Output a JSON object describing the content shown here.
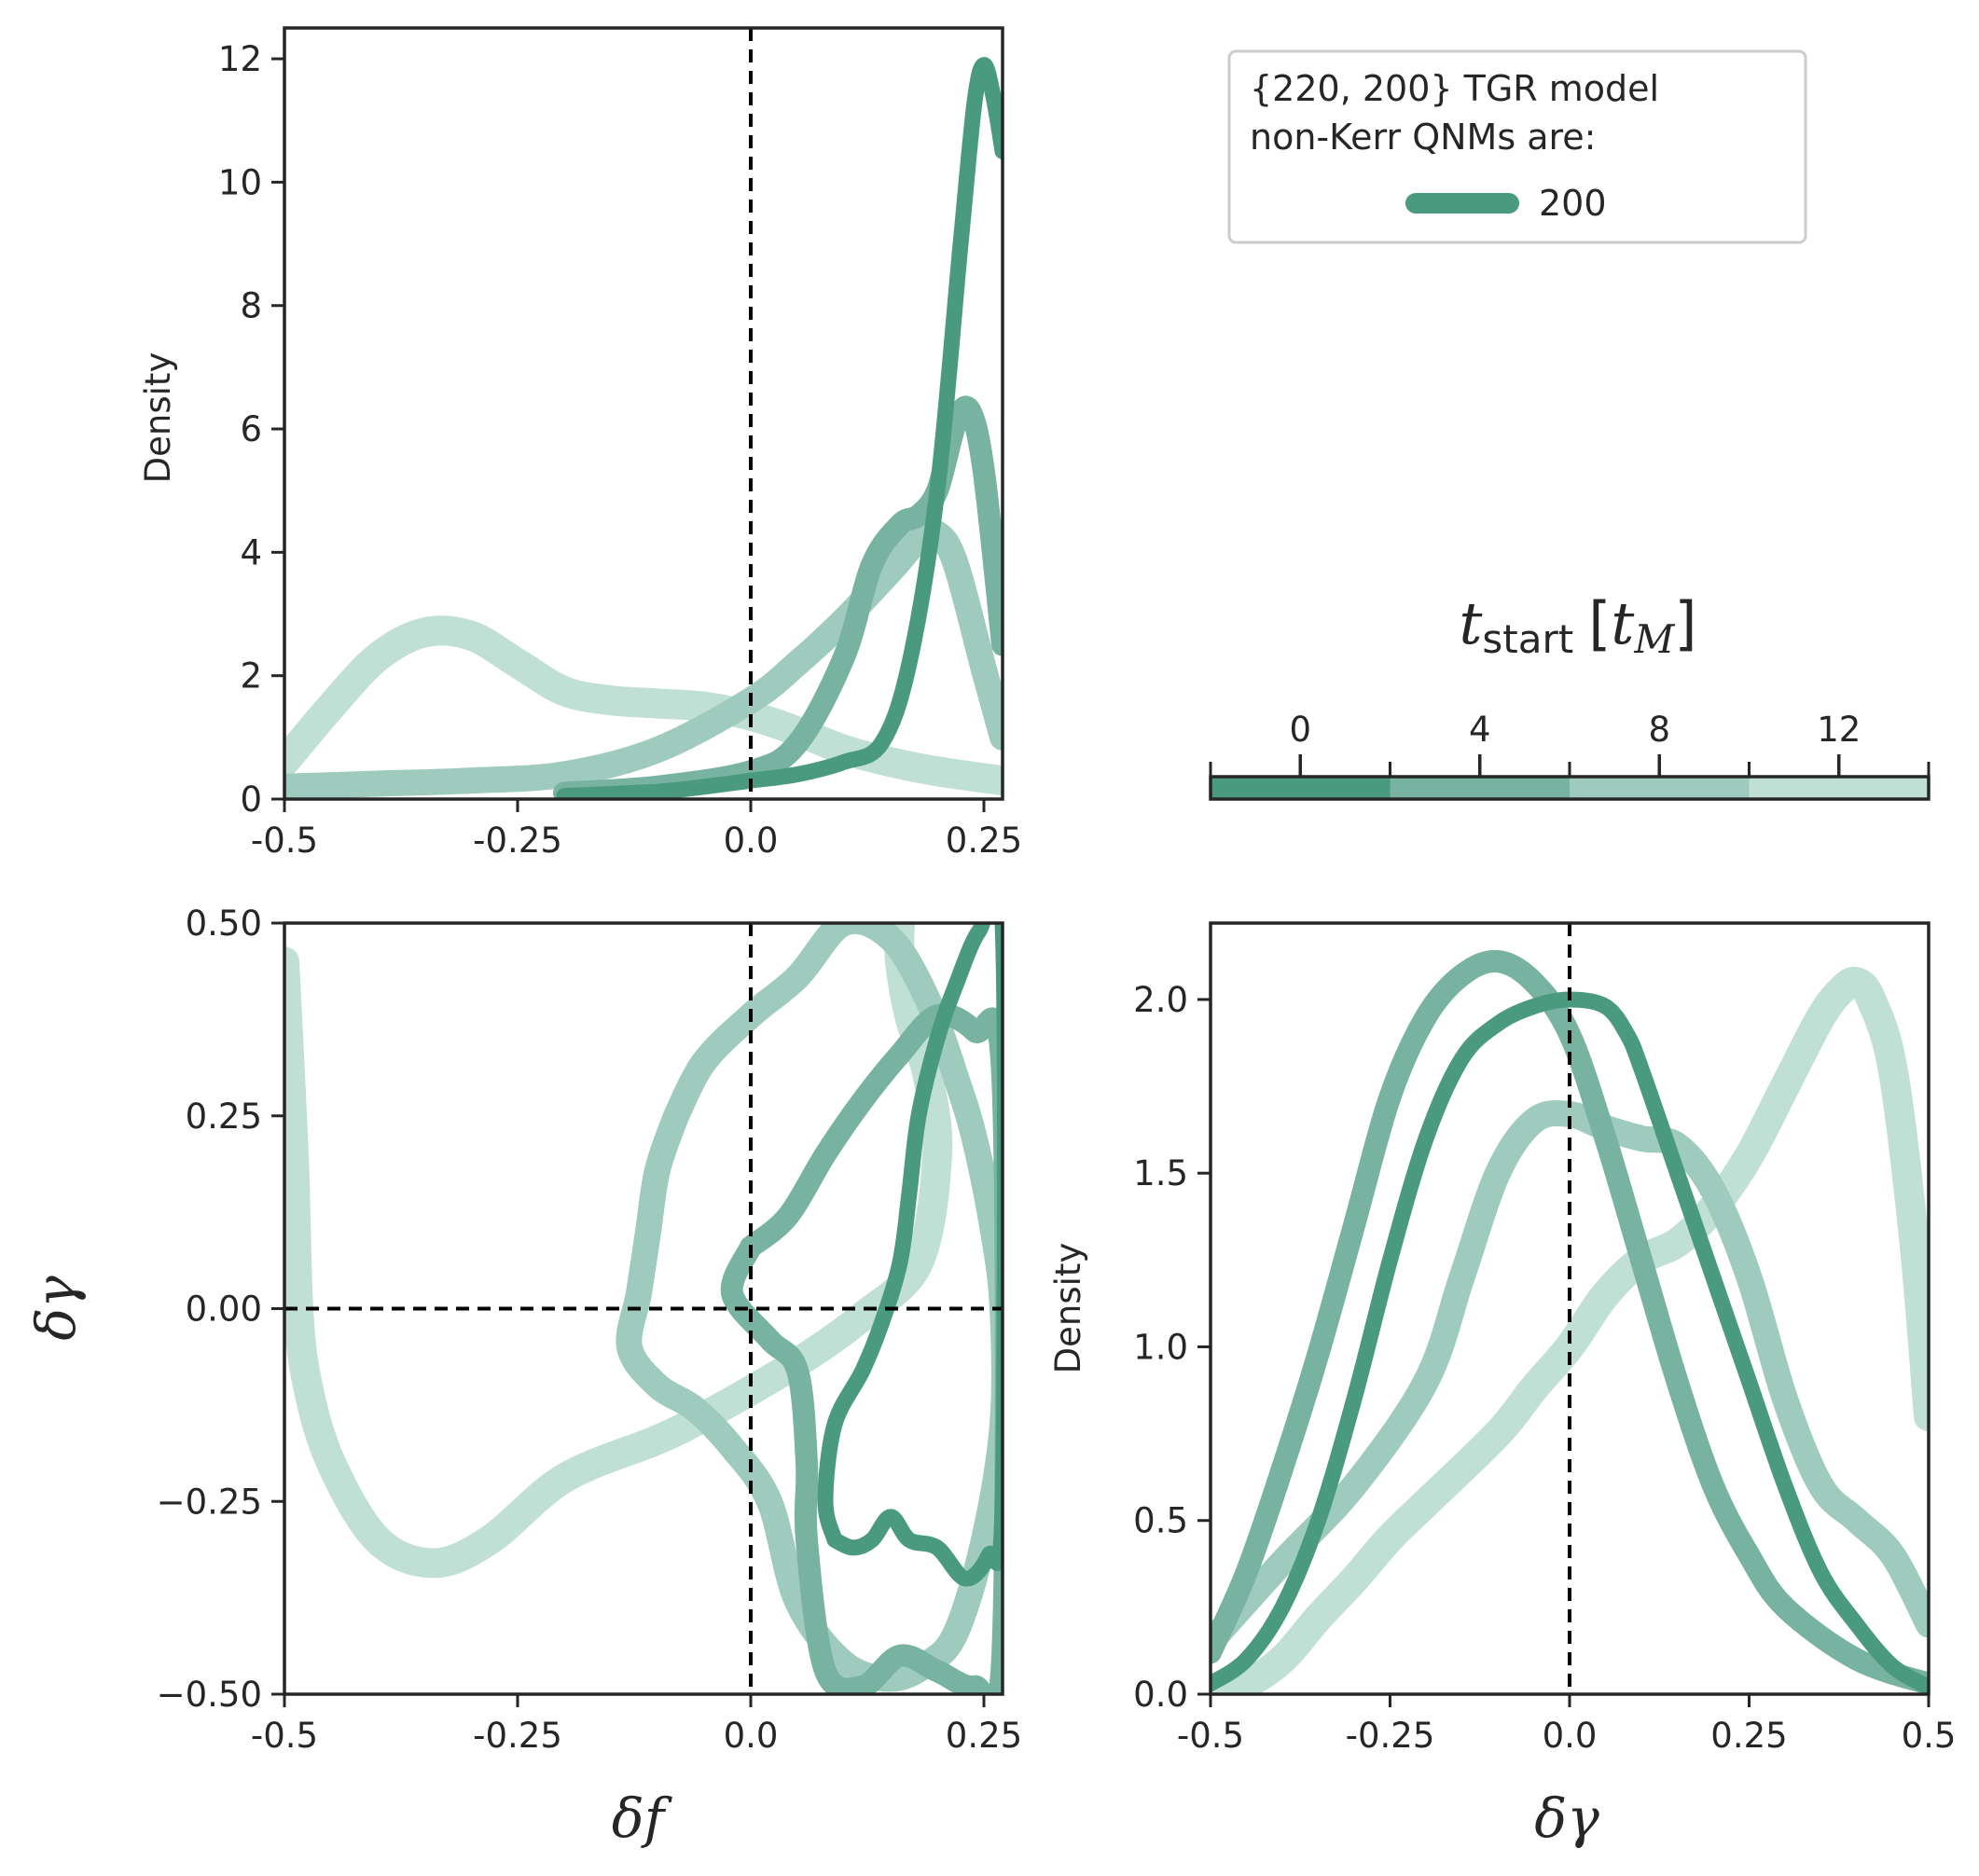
{
  "colors": {
    "dark": "#4a9a80",
    "mid": "#78b3a1",
    "light": "#9ecbbd",
    "lightest": "#c0dfd5",
    "axis": "#262626"
  },
  "legend": {
    "title_line1": "{220, 200} TGR model",
    "title_line2": "non-Kerr QNMs are:",
    "entry": "200"
  },
  "colorbar": {
    "title_main": "t",
    "title_sub": "start",
    "title_unit_open": "[",
    "title_unit": "t",
    "title_unit_sub": "M",
    "title_unit_close": "]",
    "range": [
      -2,
      14
    ],
    "ticks": [
      "0",
      "4",
      "8",
      "12"
    ],
    "bins": [
      [
        -2,
        2
      ],
      [
        2,
        6
      ],
      [
        6,
        10
      ],
      [
        10,
        14
      ]
    ]
  },
  "chart_data": [
    {
      "id": "top-left",
      "type": "line",
      "ylabel": "Density",
      "xlabel": "",
      "xlim": [
        -0.5,
        0.27
      ],
      "ylim": [
        0,
        12.5
      ],
      "xticks": [
        "-0.5",
        "-0.25",
        "0.0",
        "0.25"
      ],
      "xtick_values": [
        -0.5,
        -0.25,
        0.0,
        0.25
      ],
      "yticks": [
        "0",
        "2",
        "4",
        "6",
        "8",
        "10",
        "12"
      ],
      "ytick_values": [
        0,
        2,
        4,
        6,
        8,
        10,
        12
      ],
      "vline": 0.0,
      "series": [
        {
          "color": "dark",
          "points": [
            [
              -0.2,
              0.05
            ],
            [
              -0.1,
              0.12
            ],
            [
              -0.05,
              0.2
            ],
            [
              0,
              0.3
            ],
            [
              0.05,
              0.4
            ],
            [
              0.1,
              0.6
            ],
            [
              0.14,
              0.9
            ],
            [
              0.17,
              2.2
            ],
            [
              0.2,
              5.0
            ],
            [
              0.225,
              9.0
            ],
            [
              0.24,
              11.3
            ],
            [
              0.25,
              11.9
            ],
            [
              0.26,
              11.4
            ],
            [
              0.27,
              10.5
            ]
          ]
        },
        {
          "color": "mid",
          "points": [
            [
              -0.2,
              0.1
            ],
            [
              -0.1,
              0.2
            ],
            [
              0,
              0.45
            ],
            [
              0.05,
              0.9
            ],
            [
              0.1,
              2.3
            ],
            [
              0.13,
              3.8
            ],
            [
              0.16,
              4.45
            ],
            [
              0.18,
              4.6
            ],
            [
              0.2,
              5.0
            ],
            [
              0.22,
              6.1
            ],
            [
              0.235,
              6.3
            ],
            [
              0.25,
              5.3
            ],
            [
              0.27,
              2.5
            ]
          ]
        },
        {
          "color": "light",
          "points": [
            [
              -0.5,
              0.2
            ],
            [
              -0.4,
              0.25
            ],
            [
              -0.3,
              0.3
            ],
            [
              -0.2,
              0.4
            ],
            [
              -0.1,
              0.8
            ],
            [
              0,
              1.6
            ],
            [
              0.05,
              2.2
            ],
            [
              0.1,
              2.9
            ],
            [
              0.15,
              3.7
            ],
            [
              0.18,
              4.2
            ],
            [
              0.2,
              4.3
            ],
            [
              0.22,
              3.8
            ],
            [
              0.25,
              2.1
            ],
            [
              0.27,
              1.0
            ]
          ]
        },
        {
          "color": "lightest",
          "points": [
            [
              -0.5,
              0.6
            ],
            [
              -0.45,
              1.5
            ],
            [
              -0.4,
              2.3
            ],
            [
              -0.35,
              2.7
            ],
            [
              -0.3,
              2.65
            ],
            [
              -0.25,
              2.2
            ],
            [
              -0.2,
              1.75
            ],
            [
              -0.15,
              1.6
            ],
            [
              -0.1,
              1.55
            ],
            [
              -0.05,
              1.5
            ],
            [
              0,
              1.35
            ],
            [
              0.05,
              1.1
            ],
            [
              0.1,
              0.8
            ],
            [
              0.15,
              0.6
            ],
            [
              0.2,
              0.45
            ],
            [
              0.27,
              0.3
            ]
          ]
        }
      ]
    },
    {
      "id": "bottom-left",
      "type": "line",
      "ylabel": "δγ",
      "xlabel": "δf",
      "xlim": [
        -0.5,
        0.27
      ],
      "ylim": [
        -0.5,
        0.5
      ],
      "xticks": [
        "-0.5",
        "-0.25",
        "0.0",
        "0.25"
      ],
      "xtick_values": [
        -0.5,
        -0.25,
        0.0,
        0.25
      ],
      "yticks": [
        "−0.50",
        "−0.25",
        "0.00",
        "0.25",
        "0.50"
      ],
      "ytick_values": [
        -0.5,
        -0.25,
        0.0,
        0.25,
        0.5
      ],
      "vline": 0.0,
      "hline": 0.0,
      "series": [
        {
          "color": "lightest",
          "points": [
            [
              -0.5,
              0.45
            ],
            [
              -0.49,
              0.2
            ],
            [
              -0.485,
              0.0
            ],
            [
              -0.475,
              -0.1
            ],
            [
              -0.45,
              -0.2
            ],
            [
              -0.4,
              -0.3
            ],
            [
              -0.34,
              -0.33
            ],
            [
              -0.28,
              -0.3
            ],
            [
              -0.2,
              -0.22
            ],
            [
              -0.1,
              -0.17
            ],
            [
              -0.05,
              -0.14
            ],
            [
              0.05,
              -0.07
            ],
            [
              0.12,
              -0.01
            ],
            [
              0.18,
              0.06
            ],
            [
              0.2,
              0.2
            ],
            [
              0.19,
              0.3
            ],
            [
              0.17,
              0.38
            ],
            [
              0.16,
              0.45
            ],
            [
              0.16,
              0.5
            ]
          ]
        },
        {
          "color": "light",
          "points": [
            [
              -0.08,
              0.25
            ],
            [
              -0.05,
              0.32
            ],
            [
              0,
              0.38
            ],
            [
              0.05,
              0.43
            ],
            [
              0.1,
              0.5
            ],
            [
              0.15,
              0.48
            ],
            [
              0.19,
              0.4
            ],
            [
              0.22,
              0.3
            ],
            [
              0.24,
              0.22
            ],
            [
              0.26,
              0.1
            ],
            [
              0.27,
              0.0
            ],
            [
              0.27,
              -0.15
            ],
            [
              0.25,
              -0.3
            ],
            [
              0.22,
              -0.42
            ],
            [
              0.19,
              -0.46
            ],
            [
              0.15,
              -0.48
            ],
            [
              0.1,
              -0.46
            ],
            [
              0.05,
              -0.38
            ],
            [
              0.02,
              -0.25
            ],
            [
              -0.02,
              -0.18
            ],
            [
              -0.06,
              -0.13
            ],
            [
              -0.1,
              -0.1
            ],
            [
              -0.13,
              -0.05
            ],
            [
              -0.12,
              0.02
            ],
            [
              -0.11,
              0.1
            ],
            [
              -0.1,
              0.18
            ],
            [
              -0.08,
              0.25
            ]
          ]
        },
        {
          "color": "mid",
          "points": [
            [
              0,
              0.08
            ],
            [
              0.04,
              0.12
            ],
            [
              0.08,
              0.2
            ],
            [
              0.12,
              0.27
            ],
            [
              0.16,
              0.33
            ],
            [
              0.2,
              0.38
            ],
            [
              0.24,
              0.36
            ],
            [
              0.27,
              0.3
            ],
            [
              0.27,
              -0.45
            ],
            [
              0.24,
              -0.49
            ],
            [
              0.2,
              -0.47
            ],
            [
              0.16,
              -0.45
            ],
            [
              0.12,
              -0.49
            ],
            [
              0.08,
              -0.47
            ],
            [
              0.06,
              -0.3
            ],
            [
              0.06,
              -0.2
            ],
            [
              0.05,
              -0.08
            ],
            [
              0.02,
              -0.04
            ],
            [
              -0.02,
              0.02
            ],
            [
              0,
              0.08
            ]
          ]
        },
        {
          "color": "dark",
          "points": [
            [
              0.09,
              -0.3
            ],
            [
              0.08,
              -0.25
            ],
            [
              0.09,
              -0.15
            ],
            [
              0.12,
              -0.08
            ],
            [
              0.14,
              -0.02
            ],
            [
              0.16,
              0.06
            ],
            [
              0.17,
              0.15
            ],
            [
              0.18,
              0.25
            ],
            [
              0.2,
              0.35
            ],
            [
              0.22,
              0.42
            ],
            [
              0.245,
              0.49
            ],
            [
              0.27,
              0.5
            ],
            [
              0.27,
              -0.25
            ],
            [
              0.255,
              -0.32
            ],
            [
              0.23,
              -0.35
            ],
            [
              0.2,
              -0.31
            ],
            [
              0.17,
              -0.3
            ],
            [
              0.15,
              -0.27
            ],
            [
              0.13,
              -0.3
            ],
            [
              0.11,
              -0.31
            ],
            [
              0.09,
              -0.3
            ]
          ]
        }
      ]
    },
    {
      "id": "bottom-right",
      "type": "line",
      "ylabel": "Density",
      "xlabel": "δγ",
      "xlim": [
        -0.5,
        0.5
      ],
      "ylim": [
        0,
        2.22
      ],
      "xticks": [
        "-0.5",
        "-0.25",
        "0.0",
        "0.25",
        "0.5"
      ],
      "xtick_values": [
        -0.5,
        -0.25,
        0.0,
        0.25,
        0.5
      ],
      "yticks": [
        "0.0",
        "0.5",
        "1.0",
        "1.5",
        "2.0"
      ],
      "ytick_values": [
        0,
        0.5,
        1.0,
        1.5,
        2.0
      ],
      "vline": 0.0,
      "series": [
        {
          "color": "lightest",
          "points": [
            [
              -0.5,
              0.0
            ],
            [
              -0.45,
              0.03
            ],
            [
              -0.4,
              0.1
            ],
            [
              -0.35,
              0.22
            ],
            [
              -0.3,
              0.33
            ],
            [
              -0.25,
              0.45
            ],
            [
              -0.2,
              0.55
            ],
            [
              -0.1,
              0.75
            ],
            [
              -0.05,
              0.88
            ],
            [
              0,
              1.0
            ],
            [
              0.05,
              1.15
            ],
            [
              0.1,
              1.25
            ],
            [
              0.15,
              1.3
            ],
            [
              0.2,
              1.4
            ],
            [
              0.25,
              1.55
            ],
            [
              0.3,
              1.75
            ],
            [
              0.35,
              1.95
            ],
            [
              0.38,
              2.03
            ],
            [
              0.4,
              2.05
            ],
            [
              0.42,
              2.0
            ],
            [
              0.45,
              1.8
            ],
            [
              0.48,
              1.3
            ],
            [
              0.5,
              0.8
            ]
          ]
        },
        {
          "color": "light",
          "points": [
            [
              -0.5,
              0.15
            ],
            [
              -0.4,
              0.38
            ],
            [
              -0.3,
              0.6
            ],
            [
              -0.2,
              0.9
            ],
            [
              -0.15,
              1.2
            ],
            [
              -0.1,
              1.5
            ],
            [
              -0.05,
              1.65
            ],
            [
              0,
              1.67
            ],
            [
              0.05,
              1.63
            ],
            [
              0.1,
              1.6
            ],
            [
              0.15,
              1.58
            ],
            [
              0.2,
              1.45
            ],
            [
              0.25,
              1.2
            ],
            [
              0.3,
              0.85
            ],
            [
              0.35,
              0.6
            ],
            [
              0.4,
              0.5
            ],
            [
              0.45,
              0.4
            ],
            [
              0.5,
              0.2
            ]
          ]
        },
        {
          "color": "mid",
          "points": [
            [
              -0.5,
              0.12
            ],
            [
              -0.45,
              0.35
            ],
            [
              -0.4,
              0.65
            ],
            [
              -0.35,
              0.98
            ],
            [
              -0.3,
              1.35
            ],
            [
              -0.25,
              1.72
            ],
            [
              -0.2,
              1.95
            ],
            [
              -0.15,
              2.07
            ],
            [
              -0.1,
              2.11
            ],
            [
              -0.05,
              2.05
            ],
            [
              0,
              1.9
            ],
            [
              0.05,
              1.6
            ],
            [
              0.1,
              1.25
            ],
            [
              0.15,
              0.9
            ],
            [
              0.2,
              0.6
            ],
            [
              0.25,
              0.4
            ],
            [
              0.3,
              0.25
            ],
            [
              0.4,
              0.1
            ],
            [
              0.5,
              0.03
            ]
          ]
        },
        {
          "color": "dark",
          "points": [
            [
              -0.5,
              0.03
            ],
            [
              -0.45,
              0.1
            ],
            [
              -0.4,
              0.25
            ],
            [
              -0.35,
              0.5
            ],
            [
              -0.3,
              0.85
            ],
            [
              -0.25,
              1.25
            ],
            [
              -0.2,
              1.6
            ],
            [
              -0.15,
              1.83
            ],
            [
              -0.1,
              1.93
            ],
            [
              -0.05,
              1.98
            ],
            [
              0,
              2.0
            ],
            [
              0.05,
              1.98
            ],
            [
              0.08,
              1.9
            ],
            [
              0.1,
              1.8
            ],
            [
              0.15,
              1.5
            ],
            [
              0.2,
              1.2
            ],
            [
              0.25,
              0.9
            ],
            [
              0.3,
              0.6
            ],
            [
              0.35,
              0.35
            ],
            [
              0.4,
              0.2
            ],
            [
              0.45,
              0.08
            ],
            [
              0.5,
              0.02
            ]
          ]
        }
      ]
    }
  ]
}
